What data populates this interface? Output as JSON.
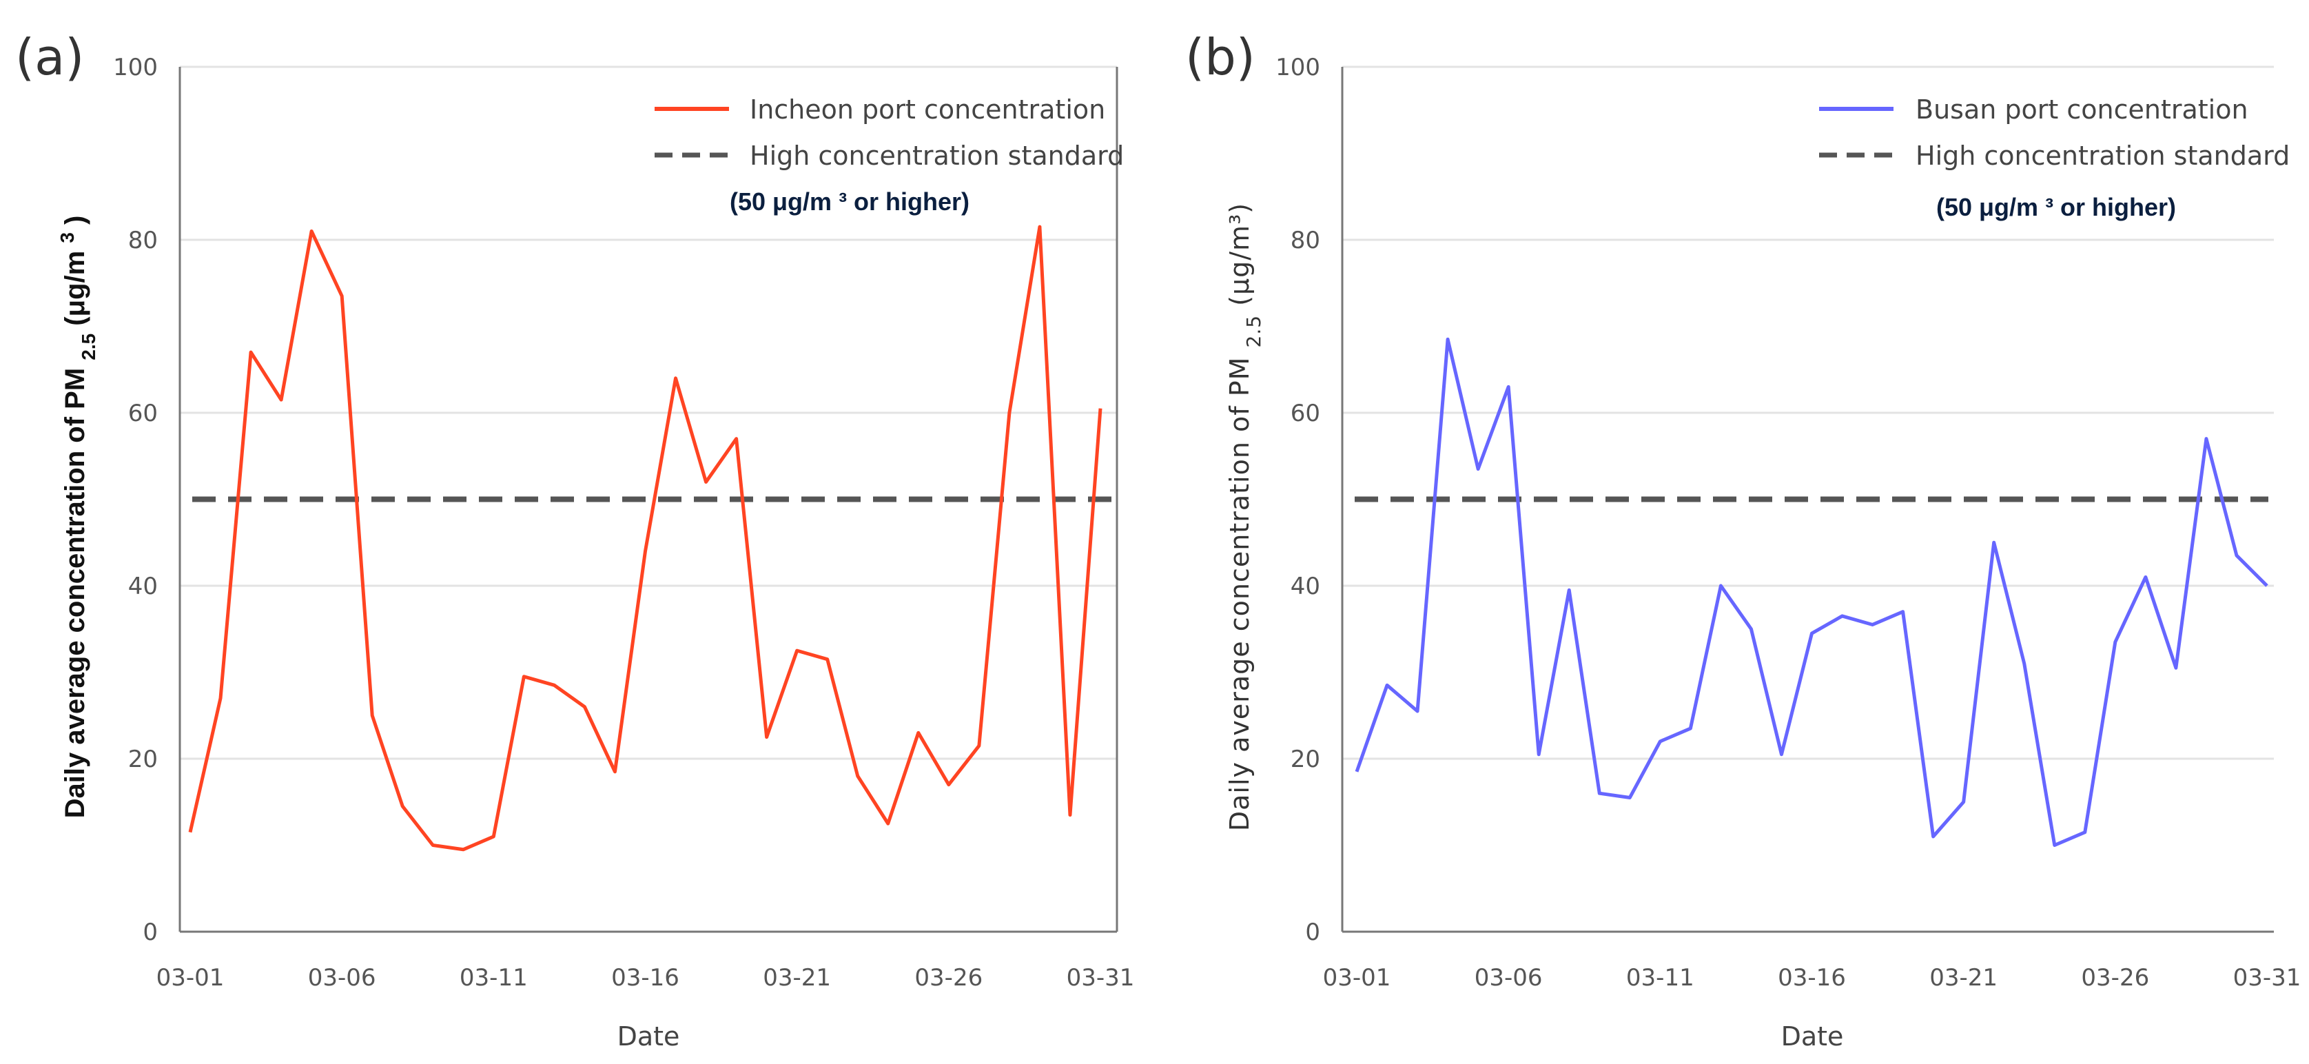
{
  "chart_data": [
    {
      "type": "line",
      "panel_label": "(a)",
      "xlabel": "Date",
      "ylabel": "Daily average concentration of PM",
      "ylabel_sub": "2.5",
      "ylabel_unit": "(μg/m",
      "ylabel_unit_sup": "3",
      "ylabel_unit_close": ")",
      "ylim": [
        0,
        100
      ],
      "yticks": [
        "0",
        "20",
        "40",
        "60",
        "80",
        "100"
      ],
      "xticks": [
        "03-01",
        "03-06",
        "03-11",
        "03-16",
        "03-21",
        "03-26",
        "03-31"
      ],
      "x": [
        "03-01",
        "03-02",
        "03-03",
        "03-04",
        "03-05",
        "03-06",
        "03-07",
        "03-08",
        "03-09",
        "03-10",
        "03-11",
        "03-12",
        "03-13",
        "03-14",
        "03-15",
        "03-16",
        "03-17",
        "03-18",
        "03-19",
        "03-20",
        "03-21",
        "03-22",
        "03-23",
        "03-24",
        "03-25",
        "03-26",
        "03-27",
        "03-28",
        "03-29",
        "03-30",
        "03-31"
      ],
      "series": [
        {
          "name": "Incheon port concentration",
          "color": "#ff4422",
          "values": [
            11.5,
            27,
            67,
            61.5,
            81,
            73.5,
            25,
            14.5,
            10,
            9.5,
            11,
            29.5,
            28.5,
            26,
            18.5,
            44,
            64,
            52,
            57,
            22.5,
            32.5,
            31.5,
            18,
            12.5,
            23,
            17,
            21.5,
            60,
            81.5,
            13.5,
            60.5
          ]
        }
      ],
      "reference_line": {
        "name": "High concentration standard",
        "value": 50,
        "color": "#555555"
      },
      "legend_note": "(50  μg/m ³ or higher)",
      "legend": "top-right",
      "grid": "horizontal"
    },
    {
      "type": "line",
      "panel_label": "(b)",
      "xlabel": "Date",
      "ylabel": "Daily average concentration of PM",
      "ylabel_sub": "2.5",
      "ylabel_unit": " (μg/m³)",
      "ylim": [
        0,
        100
      ],
      "yticks": [
        "0",
        "20",
        "40",
        "60",
        "80",
        "100"
      ],
      "xticks": [
        "03-01",
        "03-06",
        "03-11",
        "03-16",
        "03-21",
        "03-26",
        "03-31"
      ],
      "x": [
        "03-01",
        "03-02",
        "03-03",
        "03-04",
        "03-05",
        "03-06",
        "03-07",
        "03-08",
        "03-09",
        "03-10",
        "03-11",
        "03-12",
        "03-13",
        "03-14",
        "03-15",
        "03-16",
        "03-17",
        "03-18",
        "03-19",
        "03-20",
        "03-21",
        "03-22",
        "03-23",
        "03-24",
        "03-25",
        "03-26",
        "03-27",
        "03-28",
        "03-29",
        "03-30",
        "03-31"
      ],
      "series": [
        {
          "name": "Busan port concentration",
          "color": "#6666ff",
          "values": [
            18.5,
            28.5,
            25.5,
            68.5,
            53.5,
            63,
            20.5,
            39.5,
            16,
            15.5,
            22,
            23.5,
            40,
            35,
            20.5,
            34.5,
            36.5,
            35.5,
            37,
            11,
            15,
            45,
            31,
            10,
            11.5,
            33.5,
            41,
            30.5,
            57,
            43.5,
            40
          ]
        }
      ],
      "reference_line": {
        "name": "High concentration standard",
        "value": 50,
        "color": "#555555"
      },
      "legend_note": "(50  μg/m ³ or higher)",
      "legend": "top-right",
      "grid": "horizontal"
    }
  ]
}
